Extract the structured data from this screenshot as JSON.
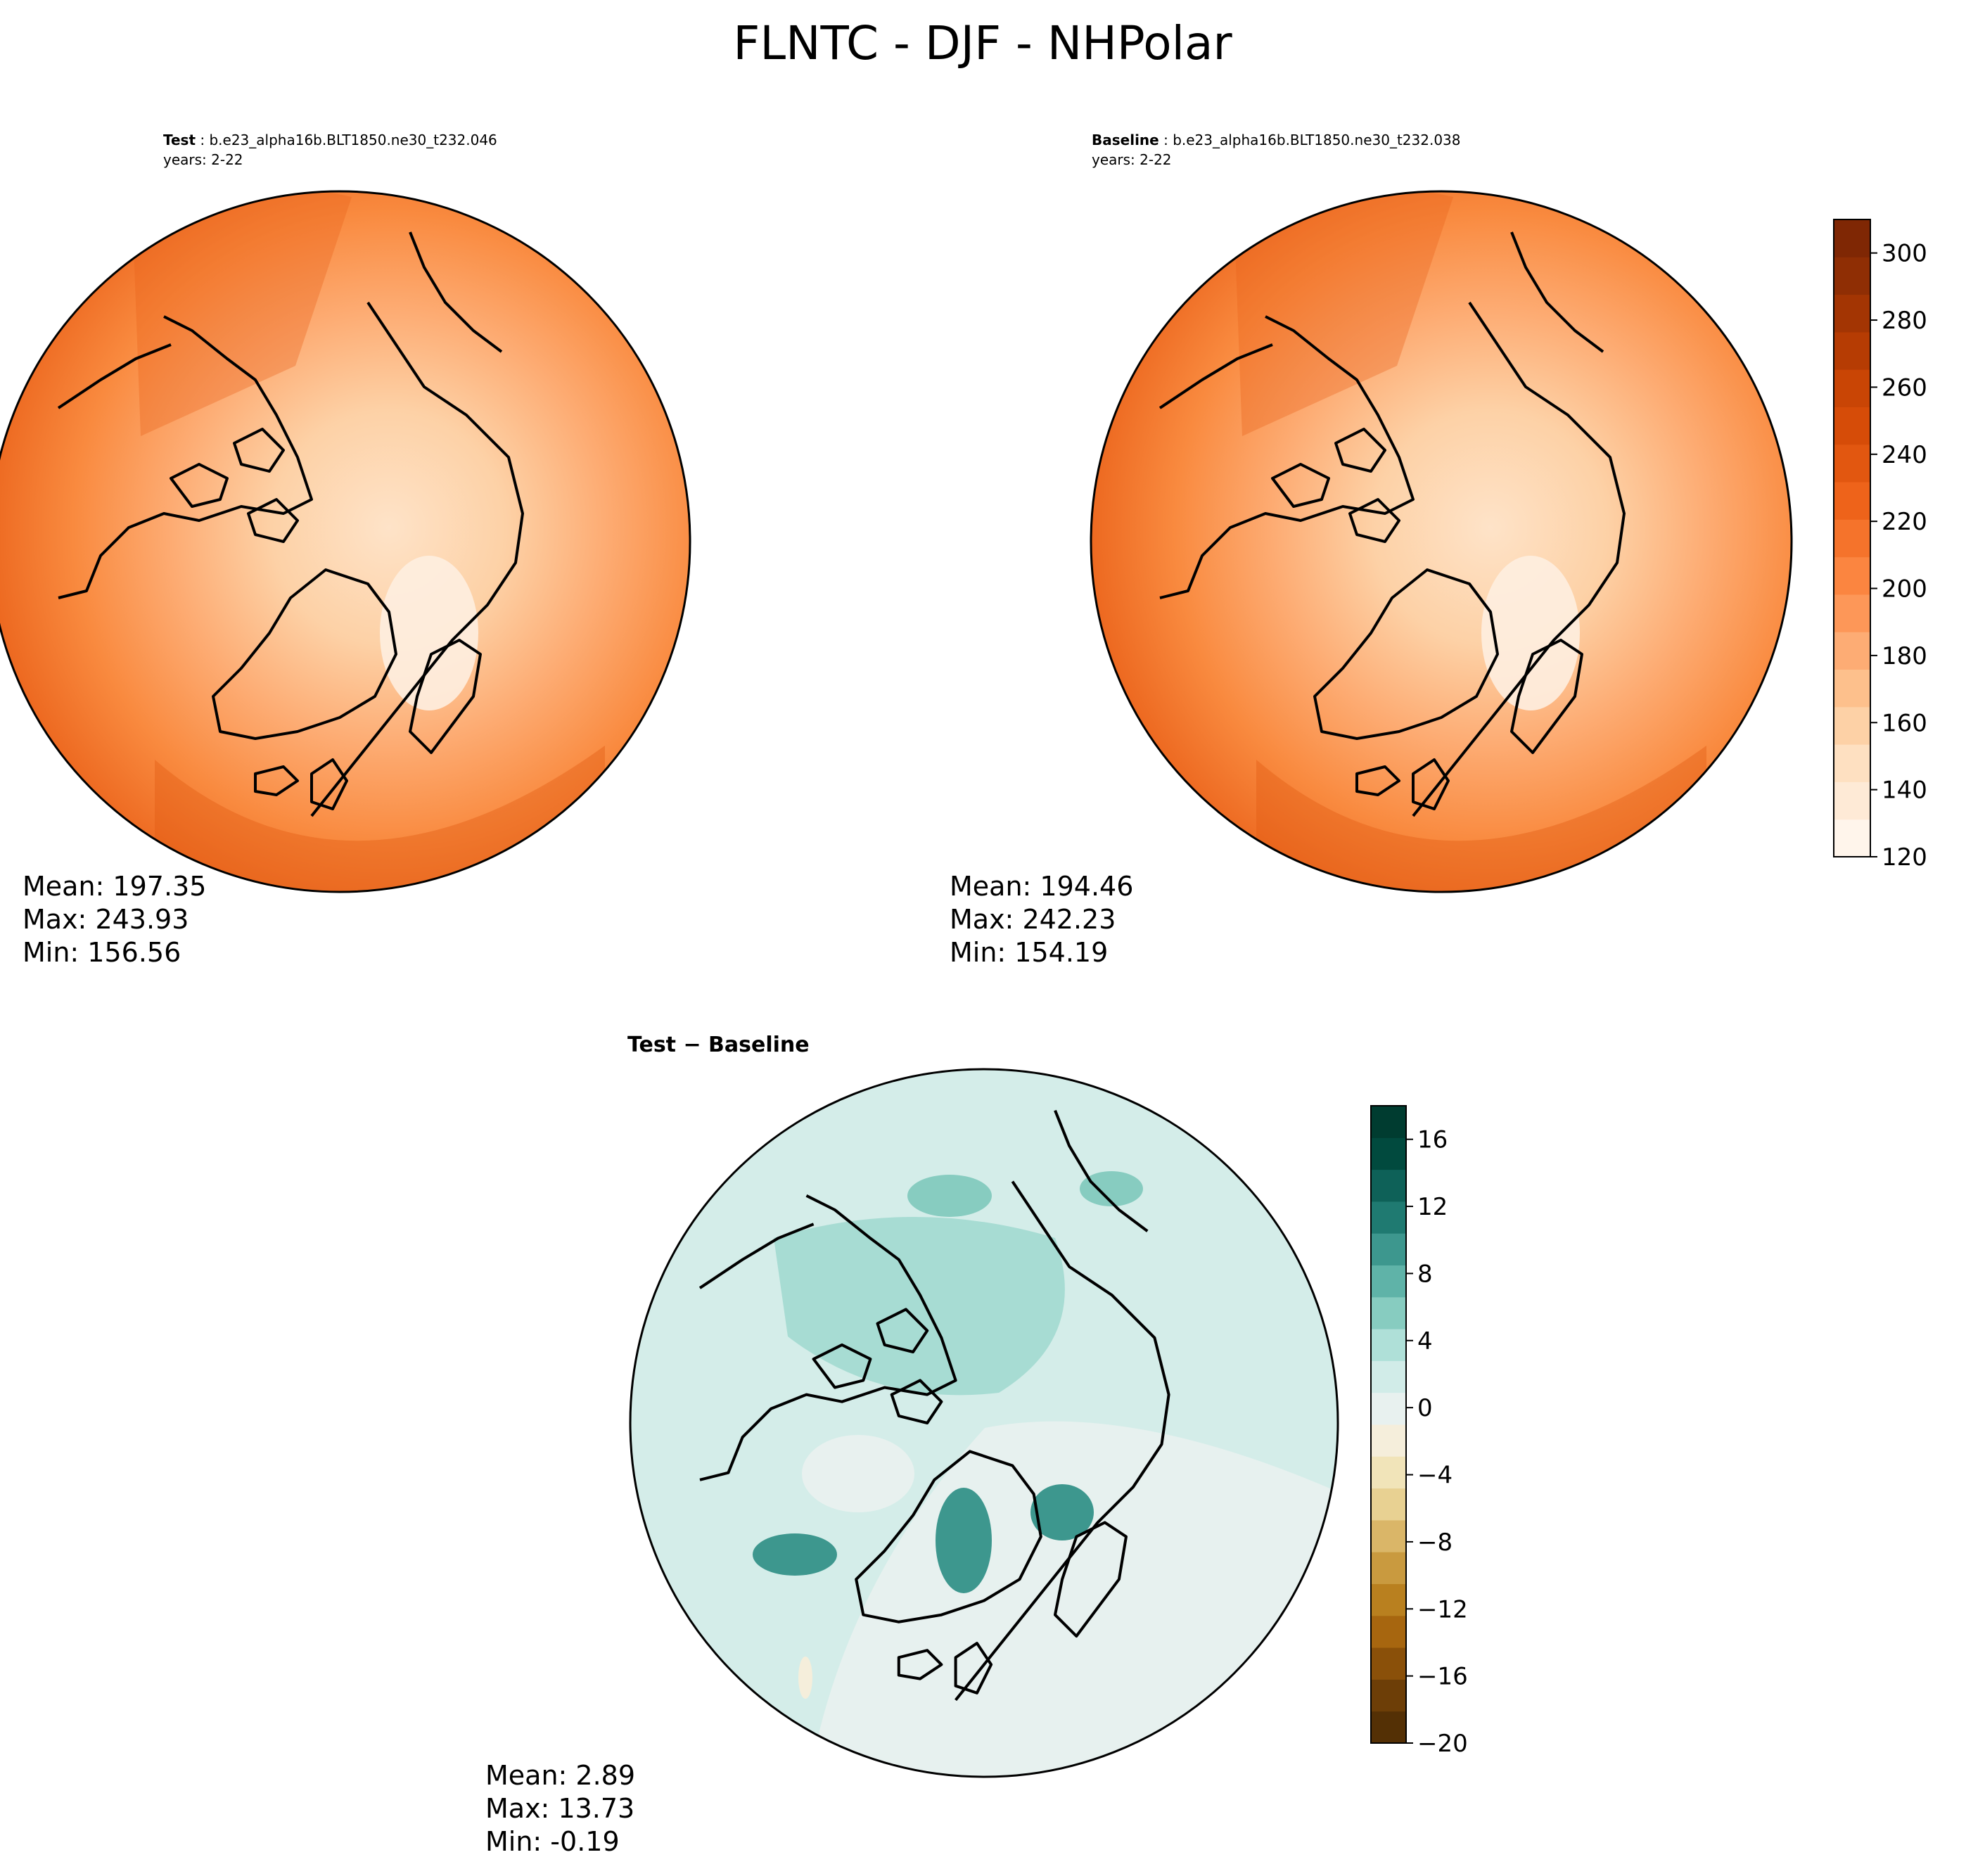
{
  "figure": {
    "title": "FLNTC - DJF - NHPolar"
  },
  "panels": {
    "test": {
      "label_bold": "Test",
      "case_name": "b.e23_alpha16b.BLT1850.ne30_t232.046",
      "years": "years: 2-22",
      "stats": {
        "mean": "Mean: 197.35",
        "max": "Max: 243.93",
        "min": "Min: 156.56"
      }
    },
    "baseline": {
      "label_bold": "Baseline",
      "case_name": "b.e23_alpha16b.BLT1850.ne30_t232.038",
      "years": "years: 2-22",
      "stats": {
        "mean": "Mean: 194.46",
        "max": "Max: 242.23",
        "min": "Min: 154.19"
      }
    },
    "difference": {
      "title": "Test − Baseline",
      "stats": {
        "mean": "Mean:  2.89",
        "max": "Max: 13.73",
        "min": "Min: -0.19"
      }
    }
  },
  "colorbars": {
    "main": {
      "colormap": "Oranges",
      "ticks": [
        120,
        140,
        160,
        180,
        200,
        220,
        240,
        260,
        280,
        300
      ],
      "tick_labels": [
        "120",
        "140",
        "160",
        "180",
        "200",
        "220",
        "240",
        "260",
        "280",
        "300"
      ],
      "range": [
        120,
        310
      ],
      "colors": [
        "#fff5eb",
        "#feead6",
        "#fee0c1",
        "#fdd1a6",
        "#fdc08c",
        "#fdac74",
        "#fd9758",
        "#fb8540",
        "#f5732b",
        "#ee631a",
        "#e25710",
        "#d64c08",
        "#c94505",
        "#b63c03",
        "#a33503",
        "#8f2e04",
        "#7f2704"
      ]
    },
    "difference": {
      "colormap": "BrBG",
      "ticks": [
        16,
        12,
        8,
        4,
        0,
        -4,
        -8,
        -12,
        -16,
        -20
      ],
      "tick_labels": [
        "16",
        "12",
        "8",
        "4",
        "0",
        "−4",
        "−8",
        "−12",
        "−16",
        "−20"
      ],
      "range": [
        -20,
        18
      ],
      "colors": [
        "#543005",
        "#6d3e07",
        "#8a5009",
        "#a7660f",
        "#b9801f",
        "#c99a3f",
        "#dab668",
        "#e8d192",
        "#f1e4b9",
        "#f5eedb",
        "#e8f1ef",
        "#d1ece8",
        "#afe0d8",
        "#87ccc0",
        "#5fb3a8",
        "#3d978e",
        "#1f7a71",
        "#0e6158",
        "#014a3e",
        "#003c30"
      ]
    }
  },
  "chart_data": [
    {
      "type": "heatmap",
      "panel": "Test",
      "projection": "North Polar Stereographic",
      "variable": "FLNTC",
      "season": "DJF",
      "stats": {
        "mean": 197.35,
        "max": 243.93,
        "min": 156.56
      },
      "colorbar_range": [
        120,
        310
      ]
    },
    {
      "type": "heatmap",
      "panel": "Baseline",
      "projection": "North Polar Stereographic",
      "variable": "FLNTC",
      "season": "DJF",
      "stats": {
        "mean": 194.46,
        "max": 242.23,
        "min": 154.19
      },
      "colorbar_range": [
        120,
        310
      ]
    },
    {
      "type": "heatmap",
      "panel": "Test − Baseline",
      "projection": "North Polar Stereographic",
      "variable": "FLNTC",
      "season": "DJF",
      "stats": {
        "mean": 2.89,
        "max": 13.73,
        "min": -0.19
      },
      "colorbar_range": [
        -20,
        18
      ]
    }
  ]
}
